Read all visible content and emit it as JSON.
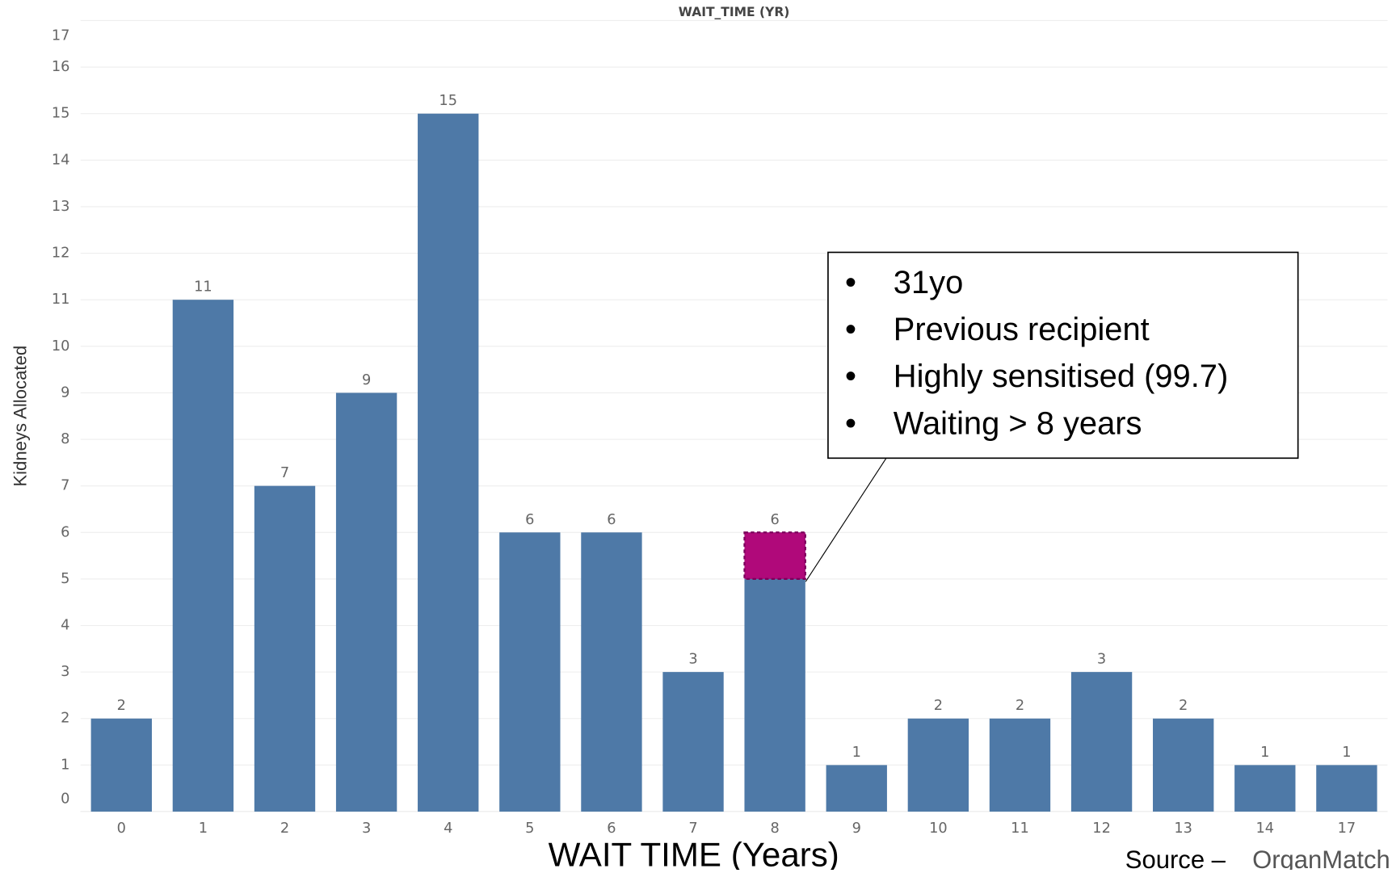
{
  "chart_data": {
    "type": "bar",
    "title": "WAIT_TIME (YR)",
    "y_label": "Kidneys Allocated",
    "x_label": "WAIT TIME (Years)",
    "categories": [
      "0",
      "1",
      "2",
      "3",
      "4",
      "5",
      "6",
      "7",
      "8",
      "9",
      "10",
      "11",
      "12",
      "13",
      "14",
      "17"
    ],
    "values": [
      2,
      11,
      7,
      9,
      15,
      6,
      6,
      3,
      6,
      1,
      2,
      2,
      3,
      2,
      1,
      1
    ],
    "color": "#4e79a7",
    "highlight": {
      "index": 8,
      "value": 1,
      "color": "#b0097a"
    },
    "ylim": [
      0,
      17
    ],
    "yticks": [
      0,
      1,
      2,
      3,
      4,
      5,
      6,
      7,
      8,
      9,
      10,
      11,
      12,
      13,
      14,
      15,
      16,
      17
    ],
    "grid": true,
    "annotation": [
      "31yo",
      "Previous recipient",
      "Highly sensitised (99.7)",
      "Waiting > 8 years"
    ],
    "source": {
      "prefix": "Source –",
      "name": "OrganMatch"
    }
  }
}
